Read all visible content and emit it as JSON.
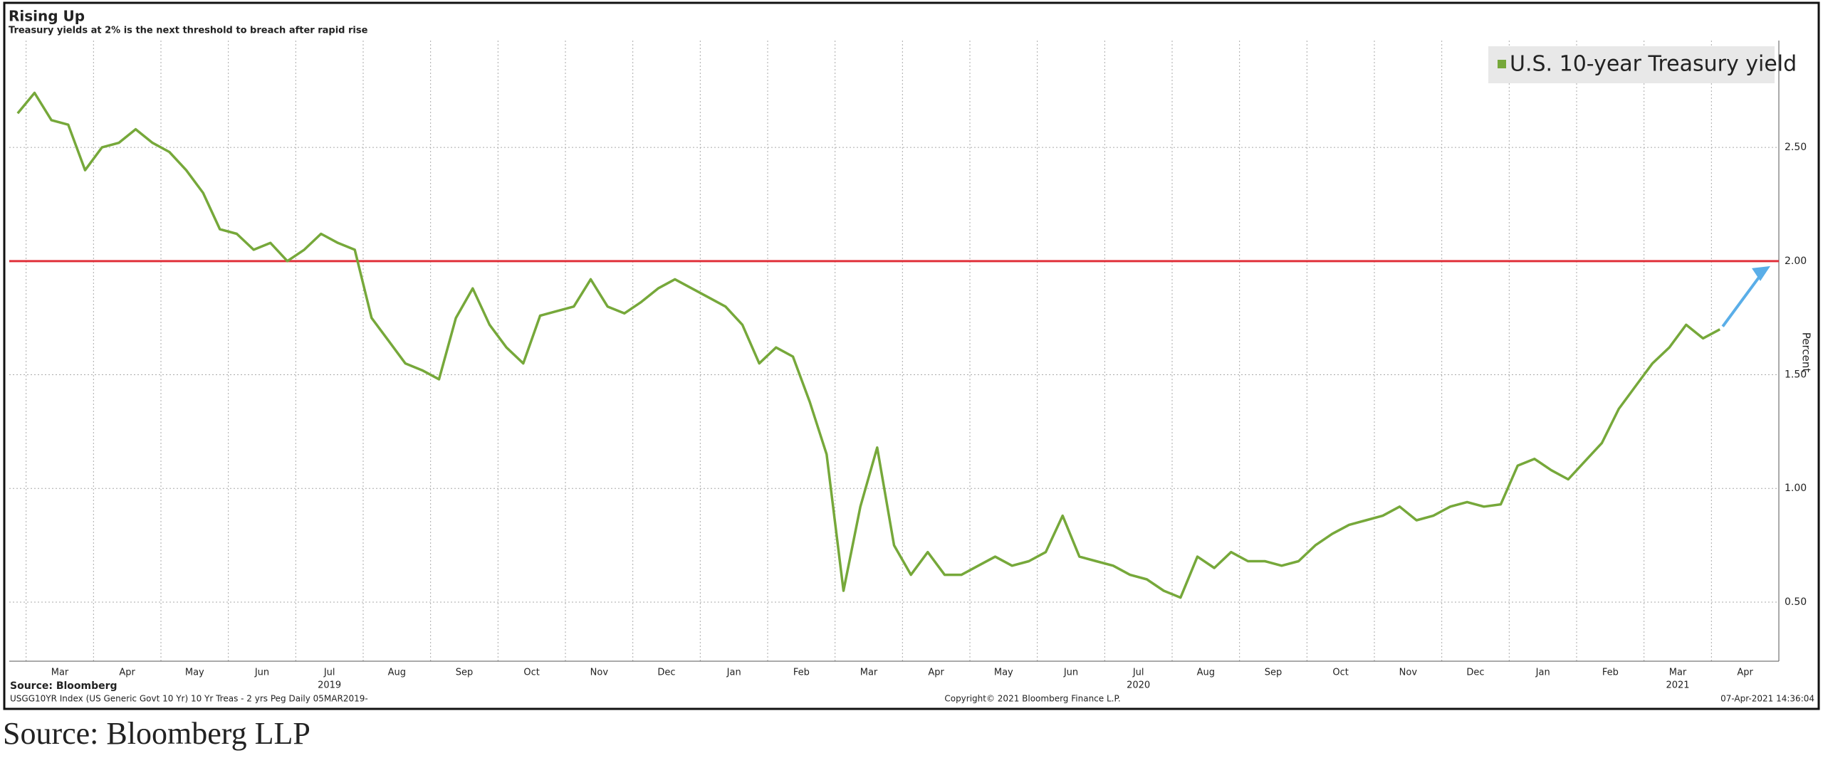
{
  "chart_data": {
    "type": "line",
    "title": "Rising Up",
    "subtitle": "Treasury yields at 2% is the next threshold to breach after rapid rise",
    "y_label": "Percent",
    "source": "Source: Bloomberg",
    "footer_left": "USGG10YR Index (US Generic Govt 10 Yr) 10 Yr Treas - 2 yrs Peg  Daily 05MAR2019-",
    "footer_center": "Copyright© 2021 Bloomberg Finance L.P.",
    "footer_right": "07-Apr-2021 14:36:04",
    "caption": "Source: Bloomberg LLP",
    "year_labels": [
      "2019",
      "2020",
      "2021"
    ],
    "categories": [
      null,
      null,
      "Mar",
      null,
      null,
      null,
      "Apr",
      null,
      null,
      null,
      "May",
      null,
      null,
      null,
      "Jun",
      null,
      null,
      null,
      "Jul",
      null,
      null,
      null,
      "Aug",
      null,
      null,
      null,
      "Sep",
      null,
      null,
      null,
      "Oct",
      null,
      null,
      null,
      "Nov",
      null,
      null,
      null,
      "Dec",
      null,
      null,
      null,
      "Jan",
      null,
      null,
      null,
      "Feb",
      null,
      null,
      null,
      "Mar",
      null,
      null,
      null,
      "Apr",
      null,
      null,
      null,
      "May",
      null,
      null,
      null,
      "Jun",
      null,
      null,
      null,
      "Jul",
      null,
      null,
      null,
      "Aug",
      null,
      null,
      null,
      "Sep",
      null,
      null,
      null,
      "Oct",
      null,
      null,
      null,
      "Nov",
      null,
      null,
      null,
      "Dec",
      null,
      null,
      null,
      "Jan",
      null,
      null,
      null,
      "Feb",
      null,
      null,
      null,
      "Mar",
      null,
      null,
      null,
      "Apr",
      null,
      null
    ],
    "series": [
      {
        "name": "U.S. 10-year Treasury yield",
        "color": "#76a83a",
        "values": [
          2.65,
          2.74,
          2.62,
          2.6,
          2.4,
          2.5,
          2.52,
          2.58,
          2.52,
          2.48,
          2.4,
          2.3,
          2.14,
          2.12,
          2.05,
          2.08,
          2.0,
          2.05,
          2.12,
          2.08,
          2.05,
          1.75,
          1.65,
          1.55,
          1.52,
          1.48,
          1.75,
          1.88,
          1.72,
          1.62,
          1.55,
          1.76,
          1.78,
          1.8,
          1.92,
          1.8,
          1.77,
          1.82,
          1.88,
          1.92,
          1.88,
          1.84,
          1.8,
          1.72,
          1.55,
          1.62,
          1.58,
          1.38,
          1.15,
          0.55,
          0.92,
          1.18,
          0.75,
          0.62,
          0.72,
          0.62,
          0.62,
          0.66,
          0.7,
          0.66,
          0.68,
          0.72,
          0.88,
          0.7,
          0.68,
          0.66,
          0.62,
          0.6,
          0.55,
          0.52,
          0.7,
          0.65,
          0.72,
          0.68,
          0.68,
          0.66,
          0.68,
          0.75,
          0.8,
          0.84,
          0.86,
          0.88,
          0.92,
          0.86,
          0.88,
          0.92,
          0.94,
          0.92,
          0.93,
          1.1,
          1.13,
          1.08,
          1.04,
          1.12,
          1.2,
          1.35,
          1.45,
          1.55,
          1.62,
          1.72,
          1.66,
          1.7,
          null,
          null,
          null
        ]
      }
    ],
    "reference_line": {
      "value": 2,
      "color": "#e0303a"
    },
    "ylim": [
      0.24,
      2.97
    ],
    "yticks": [
      {
        "value": 0.5,
        "label": "0.50"
      },
      {
        "value": 1,
        "label": "1.00"
      },
      {
        "value": 1.5,
        "label": "1.50"
      },
      {
        "value": 2,
        "label": "2.00"
      },
      {
        "value": 2.5,
        "label": "2.50"
      }
    ],
    "grid": true,
    "legend": "top-right"
  }
}
